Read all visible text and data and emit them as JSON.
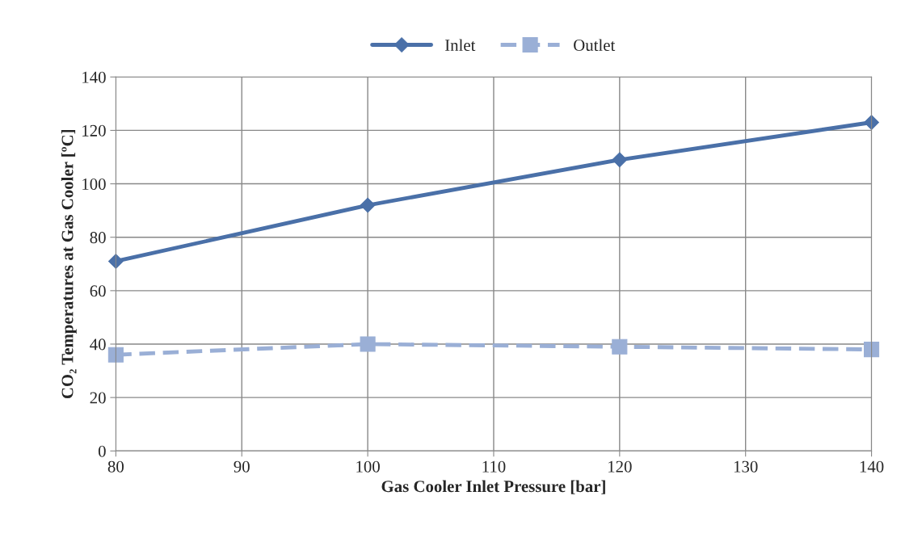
{
  "chart_data": {
    "type": "line",
    "xlabel": "Gas Cooler Inlet Pressure [bar]",
    "ylabel": "CO₂ Temperatures at Gas Cooler [ºC]",
    "x": [
      80,
      100,
      120,
      140
    ],
    "series": [
      {
        "name": "Inlet",
        "color": "#4a70a8",
        "values": [
          71,
          92,
          109,
          123
        ],
        "marker": "diamond",
        "line_style": "solid"
      },
      {
        "name": "Outlet",
        "color": "#9aafd6",
        "values": [
          36,
          40,
          39,
          38
        ],
        "marker": "square",
        "line_style": "dashed"
      }
    ],
    "xlim": [
      80,
      140
    ],
    "xticks": [
      80,
      90,
      100,
      110,
      120,
      130,
      140
    ],
    "ylim": [
      0,
      140
    ],
    "yticks": [
      0,
      20,
      40,
      60,
      80,
      100,
      120,
      140
    ],
    "grid": true,
    "legend": "top"
  }
}
